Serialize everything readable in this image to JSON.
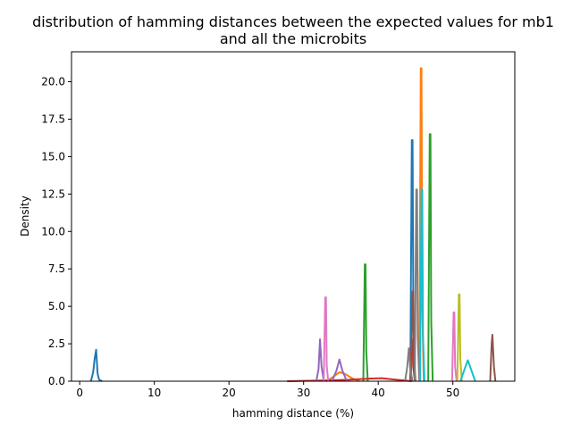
{
  "chart_data": {
    "type": "line",
    "title": "distribution of hamming distances between the expected values for mb1\nand all the microbits",
    "title_lines": [
      "distribution of hamming distances between the expected values for mb1",
      "and all the microbits"
    ],
    "xlabel": "hamming distance (%)",
    "ylabel": "Density",
    "xlim": [
      -1.1,
      58.3
    ],
    "ylim": [
      0,
      22.0
    ],
    "xticks": [
      0,
      10,
      20,
      30,
      40,
      50
    ],
    "xtick_labels": [
      "0",
      "10",
      "20",
      "30",
      "40",
      "50"
    ],
    "yticks": [
      0,
      2.5,
      5,
      7.5,
      10,
      12.5,
      15,
      17.5,
      20
    ],
    "ytick_labels": [
      "0.0",
      "2.5",
      "5.0",
      "7.5",
      "10.0",
      "12.5",
      "15.0",
      "17.5",
      "20.0"
    ],
    "grid": false,
    "legend": "none",
    "colors": [
      "#1f77b4",
      "#ff7f0e",
      "#2ca02c",
      "#d62728",
      "#9467bd",
      "#8c564b",
      "#e377c2",
      "#7f7f7f",
      "#bcbd22",
      "#17becf"
    ],
    "series": [
      {
        "color": "#1f77b4",
        "x": [
          1.5,
          1.8,
          2.0,
          2.2,
          2.4,
          2.6,
          3.0
        ],
        "y": [
          0.0,
          0.6,
          1.5,
          2.1,
          0.5,
          0.1,
          0.0
        ]
      },
      {
        "color": "#1f77b4",
        "x": [
          44.3,
          44.5,
          44.6,
          44.7,
          44.9
        ],
        "y": [
          0.0,
          16.1,
          16.1,
          5.0,
          0.0
        ]
      },
      {
        "color": "#ff7f0e",
        "x": [
          33.0,
          34.0,
          34.8,
          35.5,
          36.5,
          37.5
        ],
        "y": [
          0.0,
          0.3,
          0.6,
          0.5,
          0.2,
          0.0
        ]
      },
      {
        "color": "#ff7f0e",
        "x": [
          45.5,
          45.7,
          45.8,
          45.9,
          46.1
        ],
        "y": [
          0.0,
          20.9,
          20.9,
          5.0,
          0.0
        ]
      },
      {
        "color": "#2ca02c",
        "x": [
          38.0,
          38.2,
          38.3,
          38.4,
          38.6
        ],
        "y": [
          0.0,
          7.8,
          7.8,
          2.0,
          0.0
        ]
      },
      {
        "color": "#2ca02c",
        "x": [
          46.7,
          46.9,
          47.0,
          47.1,
          47.3
        ],
        "y": [
          0.0,
          16.5,
          16.5,
          4.0,
          0.0
        ]
      },
      {
        "color": "#d62728",
        "x": [
          27.8,
          30.0,
          33.0,
          36.0,
          39.0,
          40.5,
          42.0,
          43.5,
          44.5
        ],
        "y": [
          0.0,
          0.02,
          0.05,
          0.1,
          0.18,
          0.2,
          0.12,
          0.05,
          0.0
        ]
      },
      {
        "color": "#d62728",
        "x": [
          44.3,
          44.5,
          44.6,
          44.7,
          44.9
        ],
        "y": [
          0.0,
          2.8,
          2.8,
          1.0,
          0.0
        ]
      },
      {
        "color": "#9467bd",
        "x": [
          31.7,
          32.0,
          32.2,
          32.4,
          32.7
        ],
        "y": [
          0.0,
          0.8,
          2.8,
          1.0,
          0.0
        ]
      },
      {
        "color": "#9467bd",
        "x": [
          33.8,
          34.4,
          34.8,
          35.2,
          35.8
        ],
        "y": [
          0.0,
          0.7,
          1.45,
          0.7,
          0.0
        ]
      },
      {
        "color": "#8c564b",
        "x": [
          44.4,
          44.6,
          44.7,
          44.8,
          45.0
        ],
        "y": [
          0.0,
          6.0,
          6.0,
          1.5,
          0.0
        ]
      },
      {
        "color": "#8c564b",
        "x": [
          55.0,
          55.2,
          55.3,
          55.5,
          55.7
        ],
        "y": [
          0.0,
          2.5,
          3.1,
          1.0,
          0.0
        ]
      },
      {
        "color": "#e377c2",
        "x": [
          32.7,
          32.9,
          33.0,
          33.1,
          33.3
        ],
        "y": [
          0.0,
          5.6,
          5.6,
          1.0,
          0.0
        ]
      },
      {
        "color": "#e377c2",
        "x": [
          49.9,
          50.1,
          50.2,
          50.3,
          50.5
        ],
        "y": [
          0.0,
          4.6,
          4.6,
          1.0,
          0.0
        ]
      },
      {
        "color": "#7f7f7f",
        "x": [
          43.6,
          43.9,
          44.1,
          44.3,
          44.6
        ],
        "y": [
          0.0,
          1.0,
          2.2,
          0.8,
          0.0
        ]
      },
      {
        "color": "#7f7f7f",
        "x": [
          44.9,
          45.1,
          45.2,
          45.3,
          45.5
        ],
        "y": [
          0.0,
          12.8,
          12.8,
          3.0,
          0.0
        ]
      },
      {
        "color": "#bcbd22",
        "x": [
          50.6,
          50.8,
          50.9,
          51.0,
          51.2
        ],
        "y": [
          0.0,
          5.8,
          5.8,
          1.5,
          0.0
        ]
      },
      {
        "color": "#17becf",
        "x": [
          45.6,
          45.8,
          45.9,
          46.0,
          46.2
        ],
        "y": [
          0.0,
          12.8,
          12.8,
          3.0,
          0.0
        ]
      },
      {
        "color": "#17becf",
        "x": [
          51.0,
          51.5,
          52.0,
          52.5,
          53.0
        ],
        "y": [
          0.0,
          0.7,
          1.4,
          0.7,
          0.0
        ]
      }
    ]
  }
}
